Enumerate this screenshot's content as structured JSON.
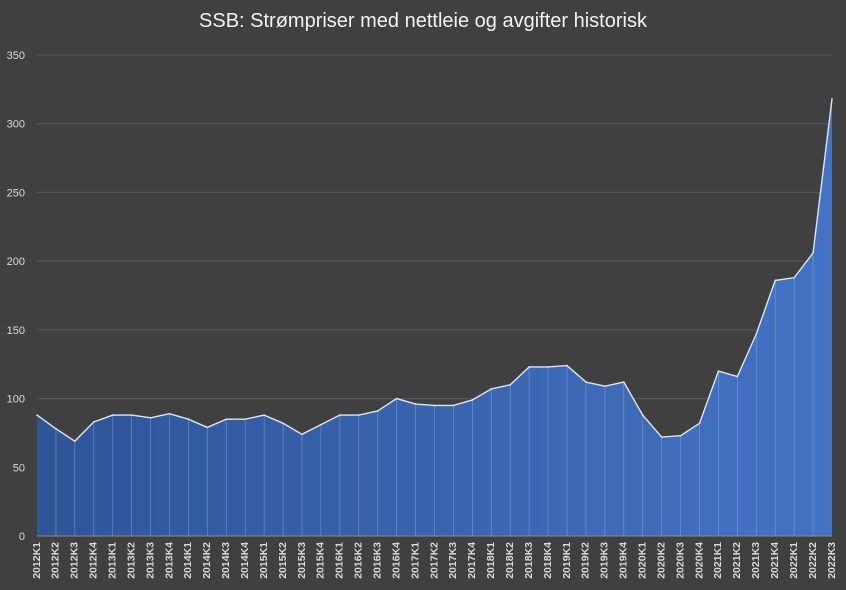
{
  "chart_data": {
    "type": "area",
    "title": "SSB: Strømpriser med nettleie og avgifter historisk",
    "xlabel": "",
    "ylabel": "",
    "ylim": [
      0,
      350
    ],
    "yticks": [
      0,
      50,
      100,
      150,
      200,
      250,
      300,
      350
    ],
    "grid": true,
    "legend": "none",
    "colors": {
      "background": "#404040",
      "area_top": "#4472C4",
      "area_bottom": "#2F5597",
      "line": "#DCE6F5",
      "grid": "#595959",
      "text": "#D9D9D9"
    },
    "categories": [
      "2012K1",
      "2012K2",
      "2012K3",
      "2012K4",
      "2013K1",
      "2013K2",
      "2013K3",
      "2013K4",
      "2014K1",
      "2014K2",
      "2014K3",
      "2014K4",
      "2015K1",
      "2015K2",
      "2015K3",
      "2015K4",
      "2016K1",
      "2016K2",
      "2016K3",
      "2016K4",
      "2017K1",
      "2017K2",
      "2017K3",
      "2017K4",
      "2018K1",
      "2018K2",
      "2018K3",
      "2018K4",
      "2019K1",
      "2019K2",
      "2019K3",
      "2019K4",
      "2020K1",
      "2020K2",
      "2020K3",
      "2020K4",
      "2021K1",
      "2021K2",
      "2021K3",
      "2021K4",
      "2022K1",
      "2022K2",
      "2022K3"
    ],
    "values": [
      88,
      78,
      69,
      83,
      88,
      88,
      86,
      89,
      85,
      79,
      85,
      85,
      88,
      82,
      74,
      81,
      88,
      88,
      91,
      100,
      96,
      95,
      95,
      99,
      107,
      110,
      123,
      123,
      124,
      112,
      109,
      112,
      88,
      72,
      73,
      82,
      120,
      116,
      147,
      186,
      188,
      206,
      318
    ]
  }
}
